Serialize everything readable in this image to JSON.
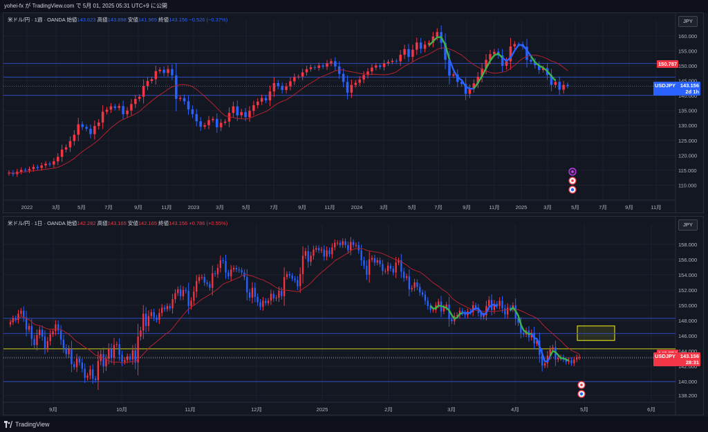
{
  "header": {
    "text": "yohei-fx が TradingView.com で 5月 01, 2025 05:31 UTC+9 に公開"
  },
  "footer": {
    "brand": "TradingView"
  },
  "colors": {
    "up": "#f23645",
    "down": "#2962ff",
    "ma": "#b2222e",
    "hline": "#2e4fbf",
    "yellow": "#d6d419",
    "green": "#3bb34a",
    "blue_curve": "#2962ff"
  },
  "chart_data": [
    {
      "type": "candlestick",
      "symbol": "米ドル/円 · 1週 · OANDA",
      "legend": {
        "open_label": "始値",
        "open": "143.623",
        "high_label": "高値",
        "high": "143.898",
        "low_label": "安値",
        "low": "141.965",
        "close_label": "終値",
        "close": "143.156",
        "change": "−0.526 (−0.37%)"
      },
      "currency": "JPY",
      "ylim": [
        105,
        163
      ],
      "yticks": [
        "160.000",
        "155.000",
        "150.000",
        "145.000",
        "140.000",
        "135.000",
        "130.000",
        "125.000",
        "120.000",
        "115.000",
        "110.000"
      ],
      "xticks": [
        "2022",
        "3月",
        "5月",
        "7月",
        "9月",
        "11月",
        "2023",
        "3月",
        "5月",
        "7月",
        "9月",
        "11月",
        "2024",
        "3月",
        "5月",
        "7月",
        "9月",
        "11月",
        "2025",
        "3月",
        "5月",
        "7月",
        "9月",
        "11月"
      ],
      "hlines": [
        150.787,
        146.2,
        140.1
      ],
      "price_tags": [
        {
          "label": "150.787",
          "value": 150.787,
          "color": "#f23645"
        },
        {
          "label": "USDJPY",
          "value": 143.156,
          "color": "#2962ff",
          "price": "143.156",
          "countdown": "2d 1h"
        }
      ],
      "close_series": [
        114.2,
        113.7,
        114.5,
        115.1,
        114.9,
        115.4,
        116.1,
        115.8,
        116.6,
        117.2,
        116.9,
        118.0,
        119.5,
        121.9,
        122.7,
        124.8,
        126.9,
        130.4,
        129.5,
        128.9,
        127.1,
        129.8,
        131.0,
        134.6,
        135.3,
        136.4,
        135.9,
        136.5,
        133.8,
        135.0,
        137.2,
        138.9,
        139.6,
        143.2,
        144.9,
        145.5,
        148.2,
        148.7,
        147.6,
        148.9,
        146.8,
        138.9,
        139.2,
        138.1,
        135.4,
        133.8,
        131.4,
        129.6,
        130.1,
        131.8,
        132.2,
        129.4,
        130.9,
        131.3,
        134.2,
        136.4,
        133.4,
        134.5,
        132.8,
        134.9,
        136.8,
        138.0,
        139.2,
        138.4,
        141.4,
        144.2,
        143.2,
        141.9,
        143.1,
        144.8,
        146.2,
        146.4,
        147.8,
        148.9,
        149.5,
        149.3,
        150.1,
        149.7,
        150.8,
        151.5,
        149.8,
        147.3,
        144.6,
        141.0,
        143.6,
        144.3,
        145.4,
        146.9,
        148.1,
        149.4,
        150.1,
        149.6,
        150.8,
        151.3,
        151.7,
        151.5,
        153.7,
        155.6,
        153.0,
        155.4,
        157.8,
        155.7,
        157.1,
        157.7,
        159.8,
        161.3,
        157.7,
        152.0,
        146.7,
        147.1,
        144.6,
        143.9,
        140.6,
        142.4,
        144.1,
        146.3,
        149.1,
        152.0,
        153.9,
        154.7,
        153.5,
        150.0,
        151.5,
        156.5,
        157.3,
        157.2,
        156.4,
        152.0,
        151.4,
        150.2,
        148.6,
        149.2,
        146.9,
        143.6,
        144.6,
        142.0,
        143.6,
        143.2
      ],
      "annotations": [
        "lightning-icon",
        "jp-flag-icon",
        "us-flag-icon"
      ]
    },
    {
      "type": "candlestick",
      "symbol": "米ドル/円 · 1日 · OANDA",
      "legend": {
        "open_label": "始値",
        "open": "142.282",
        "high_label": "高値",
        "high": "143.165",
        "low_label": "安値",
        "low": "142.165",
        "close_label": "終値",
        "close": "143.156",
        "change": "+0.786 (+0.55%)"
      },
      "currency": "JPY",
      "ylim": [
        137.3,
        159.8
      ],
      "yticks": [
        "158.000",
        "156.000",
        "154.000",
        "152.000",
        "150.000",
        "148.000",
        "146.000",
        "144.000",
        "142.000",
        "140.000",
        "138.200"
      ],
      "xticks": [
        "9月",
        "10月",
        "11月",
        "12月",
        "2025",
        "2月",
        "3月",
        "4月",
        "5月",
        "6月"
      ],
      "hlines": [
        148.3,
        146.3,
        144.3,
        143.1,
        140.0
      ],
      "zone": {
        "from": 145.4,
        "to": 147.3
      },
      "price_tags": [
        {
          "label": "143.774",
          "value": 143.774,
          "color": "#f23645"
        },
        {
          "label": "USDJPY",
          "value": 143.156,
          "color": "#f23645",
          "price": "143.156",
          "countdown": "28:31"
        }
      ],
      "close_series": [
        147.8,
        148.3,
        148.1,
        148.9,
        149.3,
        148.4,
        146.8,
        147.3,
        145.6,
        144.8,
        146.1,
        146.8,
        145.9,
        144.4,
        145.3,
        146.2,
        146.6,
        147.5,
        146.7,
        145.5,
        144.4,
        143.6,
        144.3,
        142.3,
        141.9,
        143.0,
        142.5,
        141.7,
        140.5,
        140.8,
        141.6,
        140.4,
        140.2,
        142.7,
        143.6,
        142.0,
        143.0,
        144.3,
        143.1,
        144.8,
        144.9,
        143.5,
        142.6,
        142.8,
        143.3,
        142.9,
        144.1,
        142.5,
        145.9,
        146.7,
        148.9,
        147.3,
        148.6,
        149.1,
        148.4,
        148.1,
        149.0,
        149.7,
        149.5,
        149.9,
        149.6,
        150.8,
        151.6,
        152.1,
        151.2,
        152.0,
        151.9,
        149.9,
        150.6,
        151.8,
        153.2,
        153.7,
        153.7,
        153.0,
        152.8,
        152.3,
        154.2,
        154.1,
        154.9,
        155.9,
        155.8,
        154.3,
        153.8,
        154.7,
        154.9,
        154.7,
        154.6,
        154.3,
        153.7,
        151.7,
        151.0,
        152.3,
        151.1,
        150.4,
        149.8,
        150.6,
        150.3,
        150.6,
        151.5,
        150.9,
        151.0,
        151.9,
        151.2,
        153.7,
        154.1,
        153.9,
        153.5,
        153.3,
        152.5,
        154.1,
        156.5,
        157.1,
        155.7,
        156.5,
        157.3,
        157.5,
        157.2,
        157.3,
        156.4,
        157.2,
        156.7,
        157.6,
        158.2,
        158.2,
        157.9,
        158.4,
        157.9,
        157.2,
        158.3,
        157.9,
        157.9,
        157.2,
        155.9,
        155.2,
        154.0,
        156.0,
        156.2,
        155.6,
        155.9,
        155.4,
        154.5,
        154.5,
        155.2,
        154.8,
        154.3,
        155.6,
        155.9,
        154.4,
        153.6,
        153.8,
        152.1,
        152.3,
        153.0,
        152.4,
        151.7,
        151.4,
        150.6,
        149.9,
        149.4,
        149.4,
        150.0,
        150.5,
        149.2,
        149.7,
        150.1,
        148.2,
        147.9,
        148.6,
        148.7,
        149.3,
        149.0,
        148.7,
        149.2,
        149.1,
        150.0,
        149.7,
        149.0,
        148.5,
        148.7,
        149.9,
        150.7,
        149.4,
        150.2,
        149.9,
        150.6,
        149.6,
        148.8,
        149.7,
        149.5,
        150.0,
        148.3,
        147.7,
        146.4,
        146.2,
        146.7,
        145.8,
        146.4,
        145.0,
        145.4,
        143.5,
        142.1,
        142.4,
        143.4,
        144.2,
        144.5,
        142.9,
        143.1,
        143.2,
        142.9,
        142.6,
        142.8,
        142.4,
        142.9,
        143.2,
        143.2
      ],
      "annotations": [
        "jp-flag-icon",
        "us-flag-icon"
      ]
    }
  ]
}
